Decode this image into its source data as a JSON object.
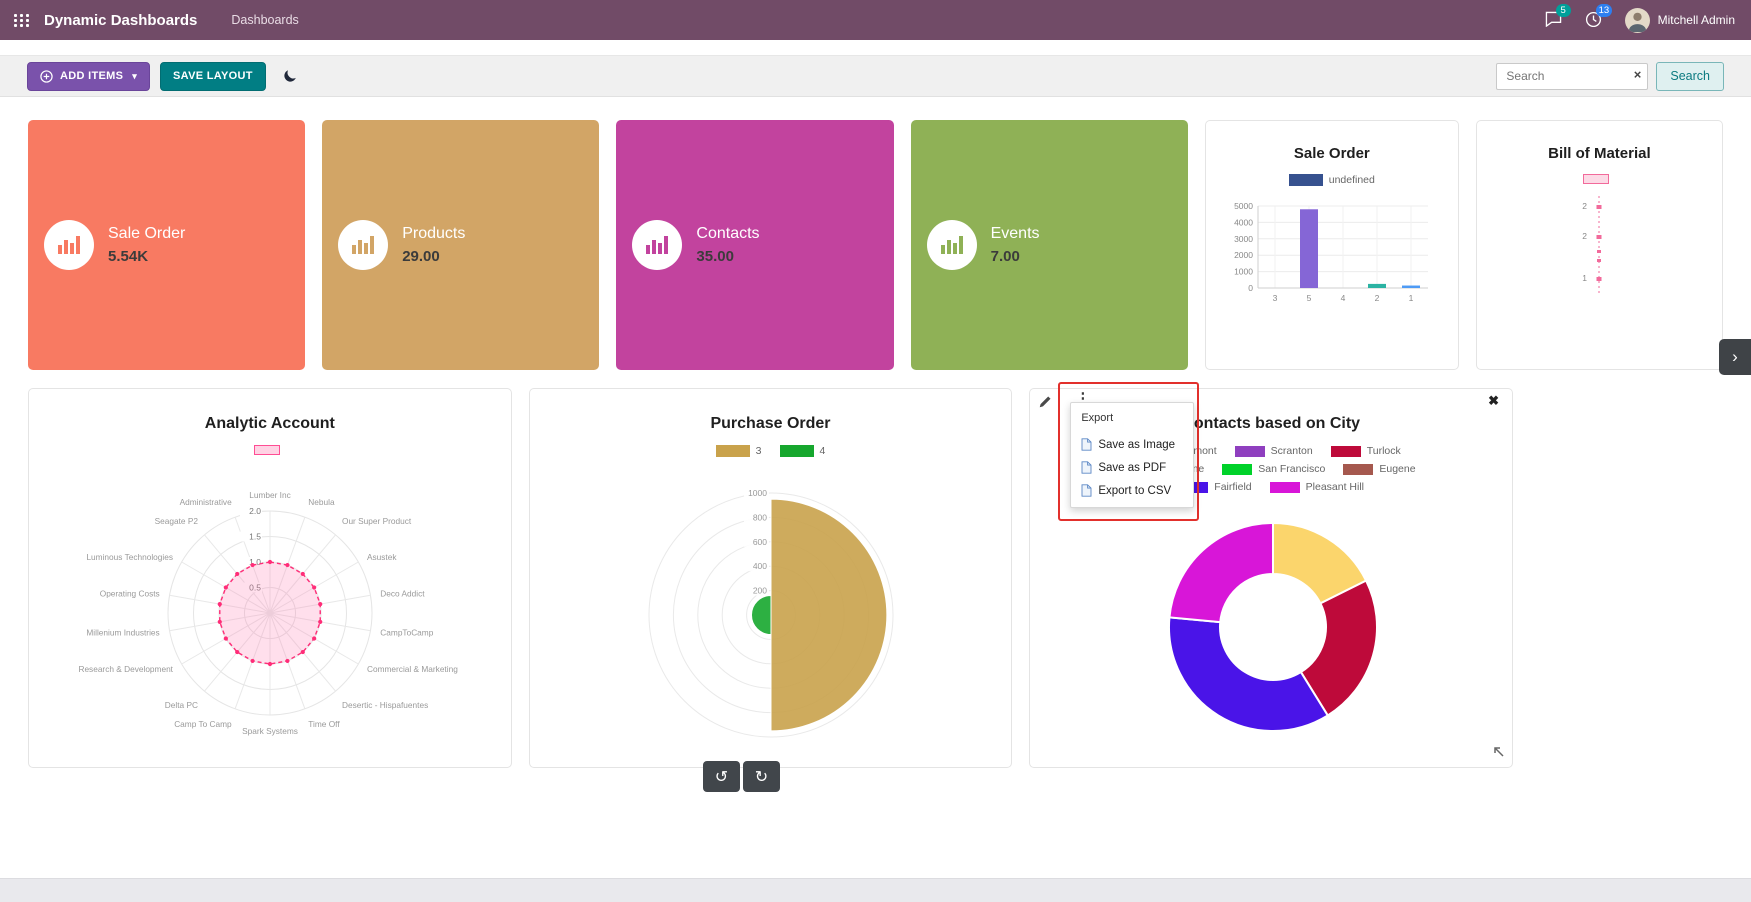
{
  "header": {
    "app_title": "Dynamic Dashboards",
    "menu_item": "Dashboards",
    "messages_badge": "5",
    "activities_badge": "13",
    "user_name": "Mitchell Admin"
  },
  "toolbar": {
    "add_items_label": "ADD ITEMS",
    "save_layout_label": "SAVE LAYOUT",
    "search_placeholder": "Search",
    "search_button_label": "Search"
  },
  "tiles": [
    {
      "title": "Sale Order",
      "value": "5.54K",
      "color": "#F87A62"
    },
    {
      "title": "Products",
      "value": "29.00",
      "color": "#D2A566"
    },
    {
      "title": "Contacts",
      "value": "35.00",
      "color": "#C2439E"
    },
    {
      "title": "Events",
      "value": "7.00",
      "color": "#8FB156"
    }
  ],
  "export_menu": {
    "title": "Export",
    "items": [
      {
        "label": "Save as Image"
      },
      {
        "label": "Save as PDF"
      },
      {
        "label": "Export to CSV"
      }
    ]
  },
  "misc": {
    "undo_icon": "↺",
    "redo_icon": "↻",
    "chevron": "›",
    "close_icon": "✖",
    "kebab_icon": "⋮",
    "clear_search_icon": "×"
  },
  "chart_data": [
    {
      "id": "sale-order-bar",
      "type": "bar",
      "title": "Sale Order",
      "legend": [
        {
          "label": "undefined",
          "color": "#36518F"
        }
      ],
      "categories": [
        "3",
        "5",
        "4",
        "2",
        "1"
      ],
      "values": [
        0,
        4800,
        0,
        250,
        150
      ],
      "bar_colors": [
        "#8566D6",
        "#8566D6",
        "#8566D6",
        "#2BB3A3",
        "#4E9BF5"
      ],
      "ylim": [
        0,
        5000
      ],
      "yticks": [
        0,
        1000,
        2000,
        3000,
        4000,
        5000
      ],
      "grid": true,
      "legend_position": "top"
    },
    {
      "id": "bill-of-material",
      "type": "scatter",
      "title": "Bill of Material",
      "legend": [
        {
          "label": "",
          "color": "#F26A9B"
        }
      ],
      "ytick_labels": [
        "2",
        "2",
        "1"
      ],
      "color": "#F26A9B"
    },
    {
      "id": "analytic-account-radar",
      "type": "radar",
      "title": "Analytic Account",
      "legend": [
        {
          "label": "",
          "color": "#FF4D94"
        }
      ],
      "categories": [
        "Lumber Inc",
        "Nebula",
        "Our Super Product",
        "Asustek",
        "Deco Addict",
        "CampToCamp",
        "Commercial & Marketing",
        "Desertic - Hispafuentes",
        "Time Off",
        "Spark Systems",
        "Camp To Camp",
        "Delta PC",
        "Research & Development",
        "Millenium Industries",
        "Operating Costs",
        "Luminous Technologies",
        "Seagate P2",
        "Administrative"
      ],
      "values": [
        1,
        1,
        1,
        1,
        1,
        1,
        1,
        1,
        1,
        1,
        1,
        1,
        1,
        1,
        1,
        1,
        1,
        1
      ],
      "rticks": [
        0.5,
        1.0,
        1.5,
        2.0
      ],
      "rmax": 2.0,
      "fill_color": "rgba(255,110,170,0.22)",
      "stroke_color": "#FF2D78"
    },
    {
      "id": "purchase-order-polar",
      "type": "polarArea",
      "title": "Purchase Order",
      "legend": [
        {
          "label": "3",
          "color": "#C9A24B"
        },
        {
          "label": "4",
          "color": "#16A72E"
        }
      ],
      "values": [
        950,
        160
      ],
      "colors": [
        "#C9A24B",
        "#16A72E"
      ],
      "rticks": [
        200,
        400,
        600,
        800,
        1000
      ],
      "rmax": 1000
    },
    {
      "id": "contacts-city-doughnut",
      "type": "doughnut",
      "title": "Contacts based on City",
      "legend": [
        {
          "label": "Fremont",
          "color": "#FBD56C"
        },
        {
          "label": "Scranton",
          "color": "#8F3FBF"
        },
        {
          "label": "Turlock",
          "color": "#BE0A3A"
        },
        {
          "label": "Bayonne",
          "color": "#3D52C4"
        },
        {
          "label": "San Francisco",
          "color": "#00D22A"
        },
        {
          "label": "Eugene",
          "color": "#A5584E"
        },
        {
          "label": "Fairfield",
          "color": "#4A14E8"
        },
        {
          "label": "Pleasant Hill",
          "color": "#D816D8"
        }
      ],
      "values": [
        3,
        0,
        4,
        0,
        0,
        0,
        6,
        4
      ]
    }
  ]
}
